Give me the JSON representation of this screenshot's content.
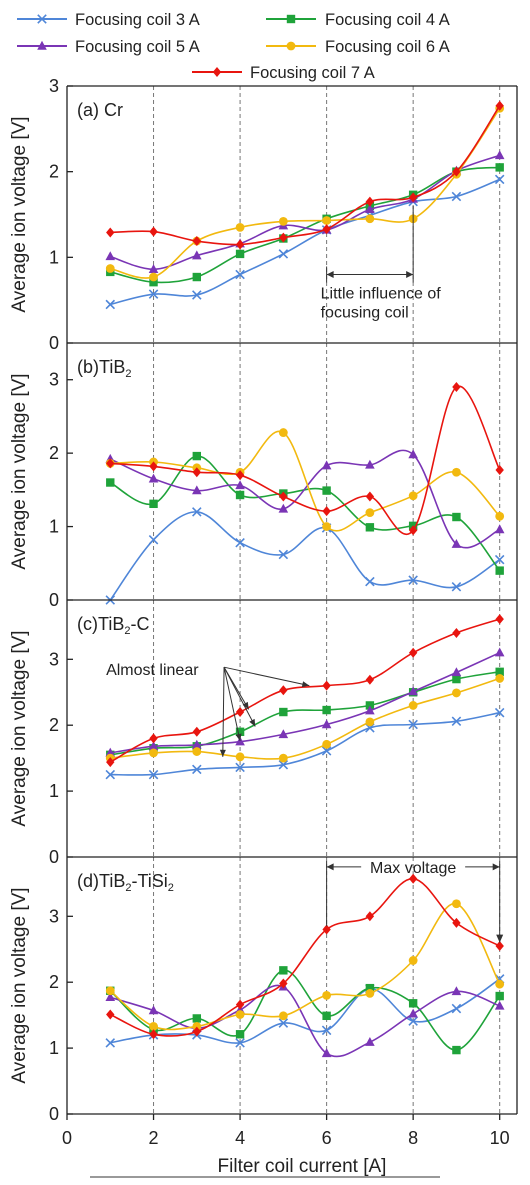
{
  "colors": {
    "coil3": "#4f86d8",
    "coil4": "#1fa33a",
    "coil5": "#7a35b5",
    "coil6": "#f2b90f",
    "coil7": "#e8150f"
  },
  "legend": [
    {
      "key": "coil3",
      "label": "Focusing coil 3 A",
      "marker": "x"
    },
    {
      "key": "coil4",
      "label": "Focusing coil 4 A",
      "marker": "square"
    },
    {
      "key": "coil5",
      "label": "Focusing coil 5 A",
      "marker": "triangle"
    },
    {
      "key": "coil6",
      "label": "Focusing coil 6 A",
      "marker": "circle"
    },
    {
      "key": "coil7",
      "label": "Focusing coil 7 A",
      "marker": "diamond"
    }
  ],
  "x_axis": {
    "label": "Filter coil current [A]",
    "ticks": [
      0,
      2,
      4,
      6,
      8,
      10
    ],
    "range": [
      0,
      10.4
    ]
  },
  "chart_data": [
    {
      "type": "line",
      "panel": "(a) Cr",
      "ylabel": "Average ion voltage [V]",
      "ylim": [
        0,
        3
      ],
      "yticks": [
        0,
        1,
        2,
        3
      ],
      "x": [
        1,
        2,
        3,
        4,
        5,
        6,
        7,
        8,
        9,
        10
      ],
      "series": [
        {
          "name": "Focusing coil 3 A",
          "key": "coil3",
          "values": [
            0.45,
            0.57,
            0.56,
            0.8,
            1.04,
            1.32,
            1.49,
            1.65,
            1.71,
            1.91
          ]
        },
        {
          "name": "Focusing coil 4 A",
          "key": "coil4",
          "values": [
            0.83,
            0.71,
            0.77,
            1.04,
            1.22,
            1.45,
            1.6,
            1.73,
            2.0,
            2.05
          ]
        },
        {
          "name": "Focusing coil 5 A",
          "key": "coil5",
          "values": [
            1.01,
            0.86,
            1.02,
            1.16,
            1.37,
            1.32,
            1.56,
            1.68,
            2.01,
            2.19
          ]
        },
        {
          "name": "Focusing coil 6 A",
          "key": "coil6",
          "values": [
            0.87,
            0.77,
            1.19,
            1.35,
            1.42,
            1.43,
            1.45,
            1.45,
            1.97,
            2.74
          ]
        },
        {
          "name": "Focusing coil 7 A",
          "key": "coil7",
          "values": [
            1.29,
            1.3,
            1.19,
            1.15,
            1.23,
            1.33,
            1.65,
            1.7,
            2.0,
            2.77
          ]
        }
      ],
      "annotations": [
        {
          "kind": "span",
          "text": [
            "Little influence of",
            "focusing coil"
          ],
          "x1": 6,
          "x2": 8,
          "y": 0.8
        }
      ]
    },
    {
      "type": "line",
      "panel": "(b)TiB",
      "panel_sub": "2",
      "ylabel": "Average ion voltage [V]",
      "ylim": [
        0,
        3.5
      ],
      "yticks": [
        0,
        1,
        2,
        3
      ],
      "x": [
        1,
        2,
        3,
        4,
        5,
        6,
        7,
        8,
        9,
        10
      ],
      "series": [
        {
          "name": "Focusing coil 3 A",
          "key": "coil3",
          "values": [
            0.0,
            0.82,
            1.2,
            0.78,
            0.62,
            0.98,
            0.25,
            0.27,
            0.18,
            0.55
          ]
        },
        {
          "name": "Focusing coil 4 A",
          "key": "coil4",
          "values": [
            1.6,
            1.31,
            1.96,
            1.43,
            1.45,
            1.49,
            0.99,
            1.01,
            1.13,
            0.4
          ]
        },
        {
          "name": "Focusing coil 5 A",
          "key": "coil5",
          "values": [
            1.92,
            1.65,
            1.49,
            1.56,
            1.24,
            1.83,
            1.84,
            1.98,
            0.76,
            0.96
          ]
        },
        {
          "name": "Focusing coil 6 A",
          "key": "coil6",
          "values": [
            1.86,
            1.88,
            1.8,
            1.74,
            2.28,
            1.0,
            1.19,
            1.42,
            1.74,
            1.14
          ]
        },
        {
          "name": "Focusing coil 7 A",
          "key": "coil7",
          "values": [
            1.86,
            1.82,
            1.74,
            1.7,
            1.41,
            1.21,
            1.41,
            0.95,
            2.9,
            1.77
          ]
        }
      ],
      "annotations": []
    },
    {
      "type": "line",
      "panel": "(c)TiB",
      "panel_sub": "2",
      "panel_suffix": "-C",
      "ylabel": "Average ion voltage [V]",
      "ylim": [
        0,
        3.9
      ],
      "yticks": [
        0,
        1,
        2,
        3
      ],
      "x": [
        1,
        2,
        3,
        4,
        5,
        6,
        7,
        8,
        9,
        10
      ],
      "series": [
        {
          "name": "Focusing coil 3 A",
          "key": "coil3",
          "values": [
            1.25,
            1.25,
            1.33,
            1.36,
            1.4,
            1.61,
            1.96,
            2.01,
            2.06,
            2.19
          ]
        },
        {
          "name": "Focusing coil 4 A",
          "key": "coil4",
          "values": [
            1.55,
            1.65,
            1.68,
            1.9,
            2.2,
            2.23,
            2.3,
            2.5,
            2.7,
            2.81
          ]
        },
        {
          "name": "Focusing coil 5 A",
          "key": "coil5",
          "values": [
            1.58,
            1.68,
            1.7,
            1.75,
            1.86,
            2.01,
            2.22,
            2.51,
            2.8,
            3.1
          ]
        },
        {
          "name": "Focusing coil 6 A",
          "key": "coil6",
          "values": [
            1.5,
            1.58,
            1.6,
            1.52,
            1.5,
            1.71,
            2.05,
            2.3,
            2.49,
            2.71
          ]
        },
        {
          "name": "Focusing coil 7 A",
          "key": "coil7",
          "values": [
            1.44,
            1.8,
            1.9,
            2.2,
            2.53,
            2.6,
            2.69,
            3.1,
            3.4,
            3.61
          ]
        }
      ],
      "annotations": [
        {
          "kind": "fan",
          "text": "Almost linear",
          "tx": 1.55,
          "ty": 2.85,
          "targets": [
            [
              3.6,
              1.52
            ],
            [
              4.0,
              1.76
            ],
            [
              4.35,
              1.98
            ],
            [
              4.2,
              2.24
            ],
            [
              5.6,
              2.6
            ]
          ]
        }
      ]
    },
    {
      "type": "line",
      "panel": "(d)TiB",
      "panel_sub": "2",
      "panel_suffix": "-TiSi",
      "panel_sub2": "2",
      "ylabel": "Average ion voltage [V]",
      "ylim": [
        0,
        3.9
      ],
      "yticks": [
        0,
        1,
        2,
        3
      ],
      "x": [
        1,
        2,
        3,
        4,
        5,
        6,
        7,
        8,
        9,
        10
      ],
      "series": [
        {
          "name": "Focusing coil 3 A",
          "key": "coil3",
          "values": [
            1.08,
            1.2,
            1.2,
            1.08,
            1.38,
            1.27,
            1.9,
            1.41,
            1.6,
            2.05
          ]
        },
        {
          "name": "Focusing coil 4 A",
          "key": "coil4",
          "values": [
            1.87,
            1.28,
            1.45,
            1.21,
            2.18,
            1.49,
            1.91,
            1.68,
            0.97,
            1.79
          ]
        },
        {
          "name": "Focusing coil 5 A",
          "key": "coil5",
          "values": [
            1.77,
            1.57,
            1.3,
            1.58,
            1.93,
            0.92,
            1.09,
            1.52,
            1.86,
            1.64
          ]
        },
        {
          "name": "Focusing coil 6 A",
          "key": "coil6",
          "values": [
            1.87,
            1.33,
            1.33,
            1.51,
            1.49,
            1.8,
            1.83,
            2.33,
            3.19,
            1.97
          ]
        },
        {
          "name": "Focusing coil 7 A",
          "key": "coil7",
          "values": [
            1.51,
            1.21,
            1.25,
            1.66,
            1.98,
            2.8,
            3.0,
            3.57,
            2.9,
            2.55
          ]
        }
      ],
      "annotations": [
        {
          "kind": "maxspan",
          "text": "Max voltage",
          "x1": 6,
          "x2": 10,
          "y": 3.75,
          "y2": 2.6
        }
      ]
    }
  ]
}
